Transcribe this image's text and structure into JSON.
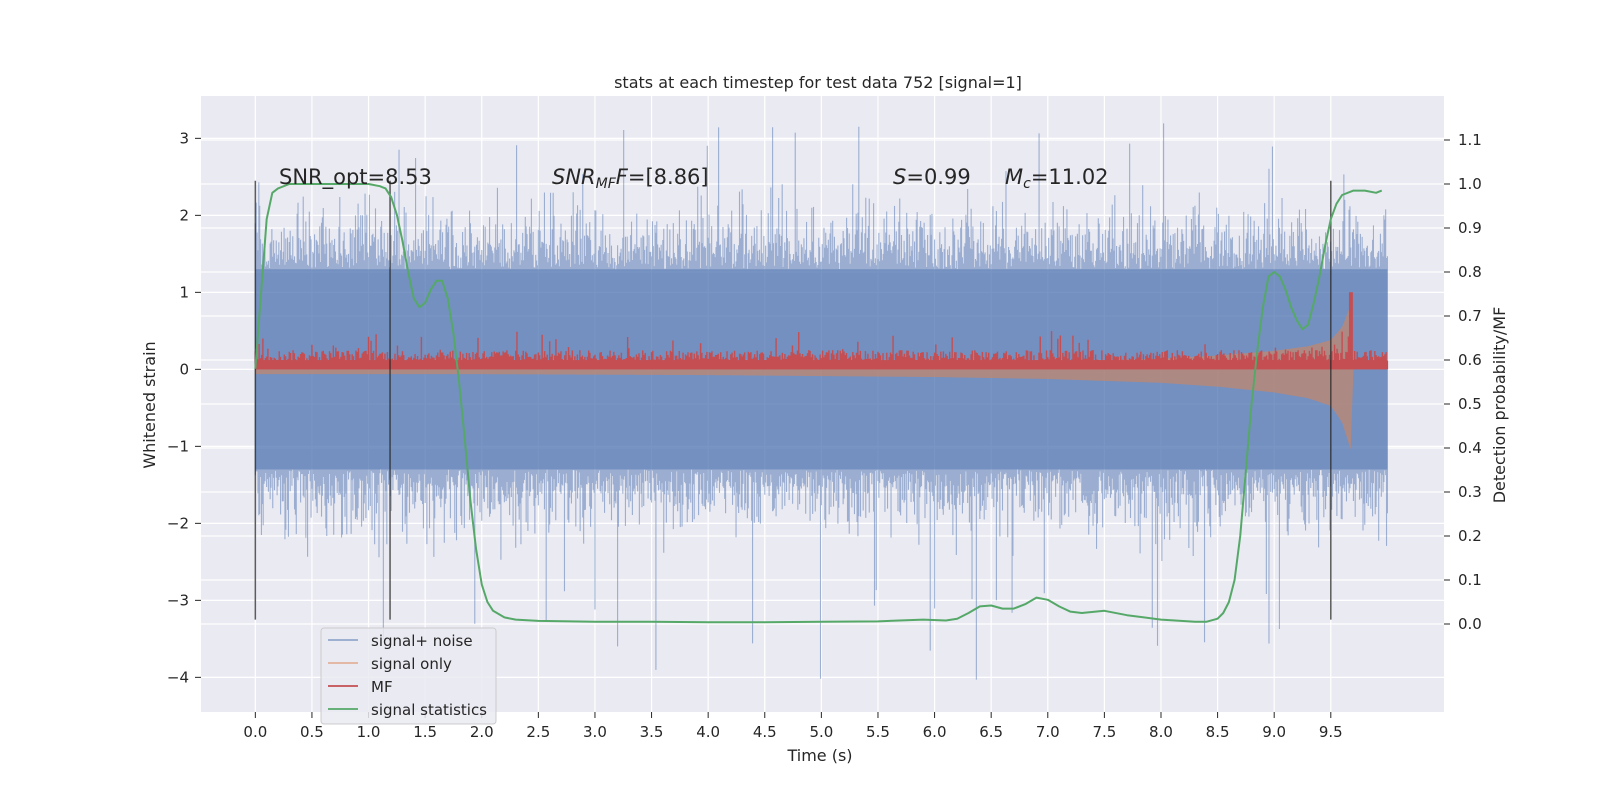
{
  "chart_data": {
    "type": "line",
    "title": "stats at each timestep for test data 752 [signal=1]",
    "xlabel": "Time (s)",
    "ylabel": "Whitened strain",
    "y2label": "Detection probability/MF",
    "xlim": [
      -0.48,
      10.5
    ],
    "ylim": [
      -4.45,
      3.55
    ],
    "y2lim": [
      -0.2,
      1.2
    ],
    "x_ticks": [
      "0.0",
      "0.5",
      "1.0",
      "1.5",
      "2.0",
      "2.5",
      "3.0",
      "3.5",
      "4.0",
      "4.5",
      "5.0",
      "5.5",
      "6.0",
      "6.5",
      "7.0",
      "7.5",
      "8.0",
      "8.5",
      "9.0",
      "9.5"
    ],
    "y_ticks": [
      "3",
      "2",
      "1",
      "0",
      "−1",
      "−2",
      "−3",
      "−4"
    ],
    "y2_ticks": [
      "1.1",
      "1.0",
      "0.9",
      "0.8",
      "0.7",
      "0.6",
      "0.5",
      "0.4",
      "0.3",
      "0.2",
      "0.1",
      "0.0"
    ],
    "grid": true,
    "legend_position": "lower-left",
    "annotations": {
      "snr_opt": "SNR_opt=8.53",
      "snr_mf_label": "SNR",
      "snr_mf_sub": "MF",
      "snr_mf_value": "=[8.86]",
      "s_label": "S",
      "s_value": "=0.99",
      "mc_label": "M",
      "mc_sub": "c",
      "mc_value": "=11.02"
    },
    "vertical_markers_x": [
      0.0,
      1.19,
      9.5
    ],
    "series": [
      {
        "name": "signal+ noise",
        "color": "#4c72b0",
        "axis": "left",
        "x_range": [
          0.0,
          10.0
        ],
        "typical_envelope": [
          -1.3,
          1.3
        ],
        "peak_range": [
          -4.05,
          3.2
        ]
      },
      {
        "name": "signal only",
        "color": "#dd8452",
        "axis": "left",
        "x": [
          0.0,
          2.0,
          4.0,
          6.0,
          7.0,
          8.0,
          8.5,
          9.0,
          9.3,
          9.5,
          9.6,
          9.68,
          9.7
        ],
        "amplitude": [
          0.05,
          0.05,
          0.06,
          0.08,
          0.1,
          0.14,
          0.18,
          0.24,
          0.3,
          0.38,
          0.55,
          0.85,
          0.0
        ]
      },
      {
        "name": "MF",
        "color": "#c44e52",
        "axis": "left",
        "x_range": [
          0.0,
          10.0
        ],
        "baseline": 0.0,
        "typical_top": 0.25,
        "peak": {
          "x": 9.68,
          "y": 1.0
        }
      },
      {
        "name": "signal statistics",
        "color": "#55a868",
        "axis": "right",
        "x": [
          0.0,
          0.05,
          0.1,
          0.15,
          0.2,
          0.3,
          0.4,
          0.6,
          0.8,
          1.0,
          1.1,
          1.15,
          1.2,
          1.25,
          1.3,
          1.35,
          1.4,
          1.45,
          1.5,
          1.55,
          1.6,
          1.65,
          1.7,
          1.75,
          1.8,
          1.85,
          1.9,
          1.95,
          2.0,
          2.05,
          2.1,
          2.2,
          2.3,
          2.5,
          3.0,
          3.5,
          4.0,
          4.5,
          5.0,
          5.5,
          5.9,
          6.1,
          6.2,
          6.3,
          6.4,
          6.5,
          6.6,
          6.7,
          6.8,
          6.9,
          7.0,
          7.1,
          7.2,
          7.3,
          7.5,
          7.7,
          8.0,
          8.3,
          8.4,
          8.5,
          8.55,
          8.6,
          8.65,
          8.7,
          8.75,
          8.8,
          8.85,
          8.9,
          8.95,
          9.0,
          9.05,
          9.1,
          9.15,
          9.2,
          9.25,
          9.3,
          9.35,
          9.4,
          9.45,
          9.5,
          9.55,
          9.6,
          9.7,
          9.8,
          9.9,
          9.95
        ],
        "y": [
          0.58,
          0.75,
          0.92,
          0.98,
          0.99,
          1.0,
          1.0,
          1.0,
          1.0,
          1.0,
          0.995,
          0.99,
          0.97,
          0.93,
          0.87,
          0.8,
          0.74,
          0.72,
          0.73,
          0.76,
          0.78,
          0.78,
          0.74,
          0.66,
          0.55,
          0.42,
          0.28,
          0.17,
          0.09,
          0.05,
          0.03,
          0.015,
          0.01,
          0.007,
          0.005,
          0.005,
          0.004,
          0.004,
          0.005,
          0.006,
          0.01,
          0.008,
          0.012,
          0.025,
          0.04,
          0.042,
          0.035,
          0.035,
          0.045,
          0.06,
          0.055,
          0.04,
          0.028,
          0.025,
          0.03,
          0.02,
          0.01,
          0.005,
          0.005,
          0.012,
          0.025,
          0.05,
          0.1,
          0.2,
          0.35,
          0.5,
          0.62,
          0.72,
          0.79,
          0.8,
          0.79,
          0.76,
          0.72,
          0.69,
          0.67,
          0.68,
          0.73,
          0.79,
          0.86,
          0.92,
          0.955,
          0.975,
          0.985,
          0.985,
          0.98,
          0.985
        ]
      }
    ]
  }
}
